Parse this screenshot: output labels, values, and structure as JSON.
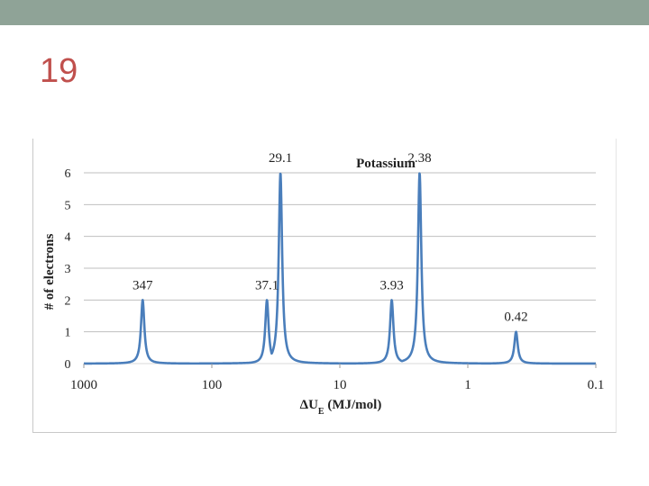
{
  "slide": {
    "number": "19"
  },
  "colors": {
    "top_bar": "#8fa397",
    "slide_number": "#c0504d",
    "series": "#4a7ebb",
    "grid": "#bfbfbf"
  },
  "chart_data": {
    "type": "line",
    "title": "Potassium",
    "xlabel_main": "ΔU",
    "xlabel_sub": "E",
    "xlabel_rest": " (MJ/mol)",
    "ylabel": "# of electrons",
    "x_scale": "log-reversed",
    "xlim": [
      1000,
      0.1
    ],
    "ylim": [
      0,
      6
    ],
    "x_ticks": [
      "1000",
      "100",
      "10",
      "1",
      "0.1"
    ],
    "x_tick_values": [
      1000,
      100,
      10,
      1,
      0.1
    ],
    "y_ticks": [
      "0",
      "1",
      "2",
      "3",
      "4",
      "5",
      "6"
    ],
    "grid": "horizontal",
    "peaks": [
      {
        "x": 347,
        "y": 2,
        "label": "347"
      },
      {
        "x": 37.1,
        "y": 2,
        "label": "37.1"
      },
      {
        "x": 29.1,
        "y": 6,
        "label": "29.1"
      },
      {
        "x": 3.93,
        "y": 2,
        "label": "3.93"
      },
      {
        "x": 2.38,
        "y": 6,
        "label": "2.38"
      },
      {
        "x": 0.42,
        "y": 1,
        "label": "0.42"
      }
    ]
  }
}
